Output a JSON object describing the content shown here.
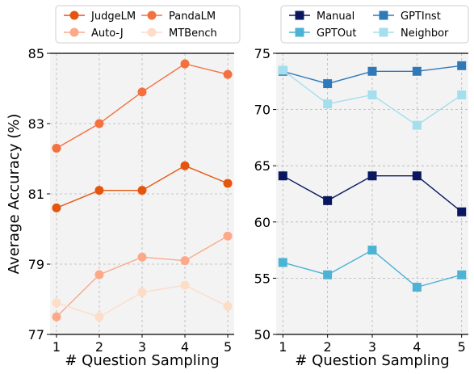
{
  "shared_xlabel": "# Question Sampling",
  "chart_data": [
    {
      "type": "line",
      "ylabel": "Average Accuracy (%)",
      "xlabel": "# Question Sampling",
      "x": [
        1,
        2,
        3,
        4,
        5
      ],
      "xlim": [
        0.85,
        5.15
      ],
      "ylim": [
        77,
        85
      ],
      "yticks": [
        77,
        79,
        81,
        83,
        85
      ],
      "grid": true,
      "legend_position": "top",
      "marker": "circle",
      "series": [
        {
          "name": "JudgeLM",
          "color": "#e6550d",
          "values": [
            80.6,
            81.1,
            81.1,
            81.8,
            81.3
          ]
        },
        {
          "name": "Auto-J",
          "color": "#fca889",
          "values": [
            77.5,
            78.7,
            79.2,
            79.1,
            79.8
          ]
        },
        {
          "name": "PandaLM",
          "color": "#f4703f",
          "values": [
            82.3,
            83.0,
            83.9,
            84.7,
            84.4
          ]
        },
        {
          "name": "MTBench",
          "color": "#fddcc8",
          "values": [
            77.9,
            77.5,
            78.2,
            78.4,
            77.8
          ]
        }
      ]
    },
    {
      "type": "line",
      "ylabel": "",
      "xlabel": "# Question Sampling",
      "x": [
        1,
        2,
        3,
        4,
        5
      ],
      "xlim": [
        0.85,
        5.15
      ],
      "ylim": [
        50,
        75
      ],
      "yticks": [
        50,
        55,
        60,
        65,
        70,
        75
      ],
      "grid": true,
      "legend_position": "top",
      "marker": "square",
      "series": [
        {
          "name": "Manual",
          "color": "#0a1660",
          "values": [
            64.1,
            61.9,
            64.1,
            64.1,
            60.9
          ]
        },
        {
          "name": "GPTOut",
          "color": "#4cb3d4",
          "values": [
            56.4,
            55.3,
            57.5,
            54.2,
            55.3
          ]
        },
        {
          "name": "GPTInst",
          "color": "#3079b8",
          "values": [
            73.4,
            72.3,
            73.4,
            73.4,
            73.9
          ]
        },
        {
          "name": "Neighbor",
          "color": "#a4dfee",
          "values": [
            73.5,
            70.5,
            71.3,
            68.6,
            71.3
          ]
        }
      ]
    }
  ]
}
